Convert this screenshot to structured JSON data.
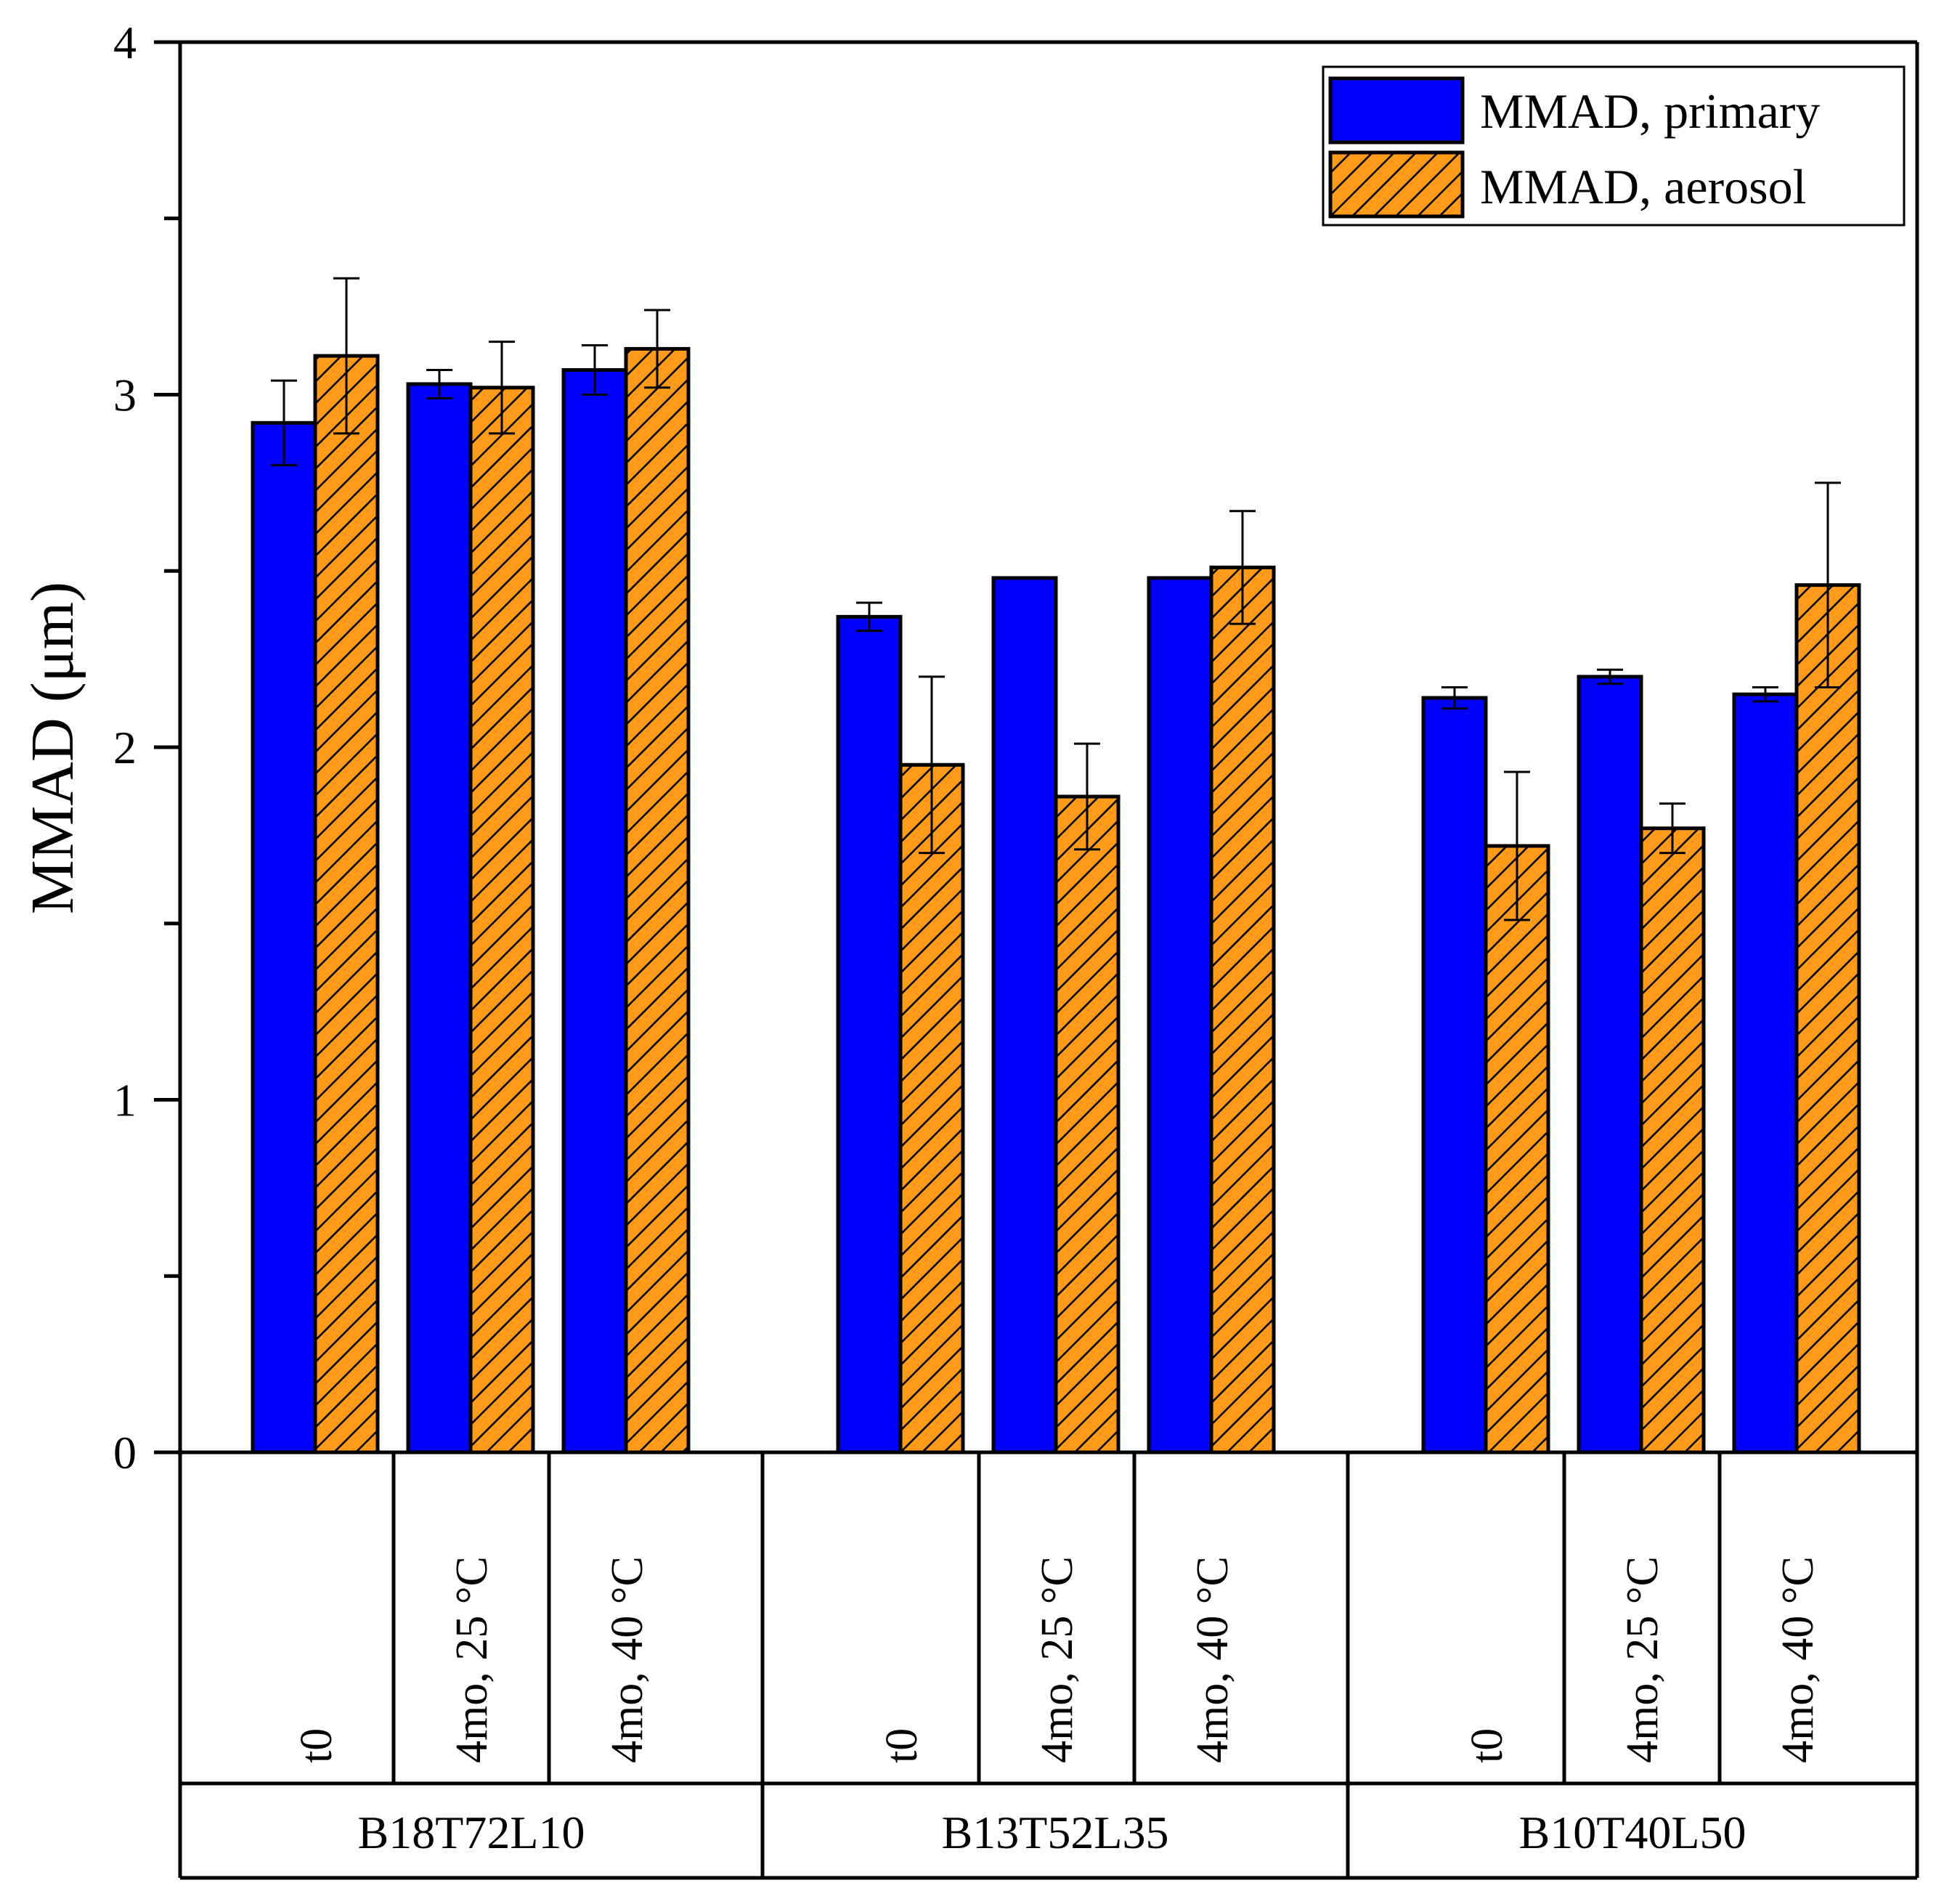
{
  "chart_data": {
    "type": "bar",
    "title": "",
    "ylabel": "MMAD (μm)",
    "xlabel": "",
    "ylim": [
      0,
      4
    ],
    "yticks": [
      "0",
      "1",
      "2",
      "3",
      "4"
    ],
    "groups": [
      {
        "name": "B18T72L10",
        "conditions": [
          "t0",
          "4mo, 25 °C",
          "4mo, 40 °C"
        ]
      },
      {
        "name": "B13T52L35",
        "conditions": [
          "t0",
          "4mo, 25 °C",
          "4mo, 40 °C"
        ]
      },
      {
        "name": "B10T40L50",
        "conditions": [
          "t0",
          "4mo, 25 °C",
          "4mo, 40 °C"
        ]
      }
    ],
    "series": [
      {
        "name": "MMAD, primary",
        "color": "#0000ff",
        "pattern": "solid",
        "values": [
          2.92,
          3.03,
          3.07,
          2.37,
          2.48,
          2.48,
          2.14,
          2.2,
          2.15
        ],
        "errors": [
          0.12,
          0.04,
          0.07,
          0.04,
          0.0,
          0.0,
          0.03,
          0.02,
          0.02
        ]
      },
      {
        "name": "MMAD, aerosol",
        "color": "#ff9a1a",
        "pattern": "hatched",
        "values": [
          3.11,
          3.02,
          3.13,
          1.95,
          1.86,
          2.51,
          1.72,
          1.77,
          2.46
        ],
        "errors": [
          0.22,
          0.13,
          0.11,
          0.25,
          0.15,
          0.16,
          0.21,
          0.07,
          0.29
        ]
      }
    ],
    "legend_position": "top-right",
    "grid": false
  }
}
